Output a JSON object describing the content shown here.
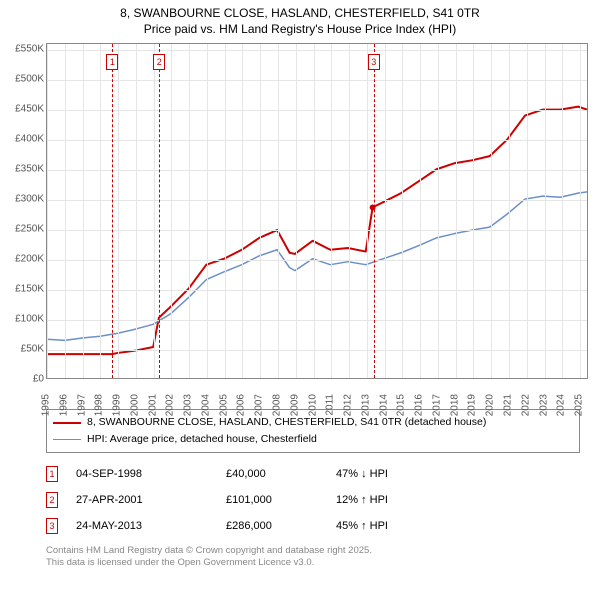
{
  "title": {
    "line1": "8, SWANBOURNE CLOSE, HASLAND, CHESTERFIELD, S41 0TR",
    "line2": "Price paid vs. HM Land Registry's House Price Index (HPI)"
  },
  "chart": {
    "type": "line",
    "background_color": "#ffffff",
    "grid_color": "#e5e5e5",
    "border_color": "#888888",
    "ylim": [
      0,
      560000
    ],
    "ytick_step": 50000,
    "yticks": [
      "£0",
      "£50K",
      "£100K",
      "£150K",
      "£200K",
      "£250K",
      "£300K",
      "£350K",
      "£400K",
      "£450K",
      "£500K",
      "£550K"
    ],
    "xlim": [
      1995,
      2025.5
    ],
    "xticks": [
      1995,
      1996,
      1997,
      1998,
      1999,
      2000,
      2001,
      2002,
      2003,
      2004,
      2005,
      2006,
      2007,
      2008,
      2009,
      2010,
      2011,
      2012,
      2013,
      2014,
      2015,
      2016,
      2017,
      2018,
      2019,
      2020,
      2021,
      2022,
      2023,
      2024,
      2025
    ],
    "series": [
      {
        "name": "price_paid",
        "color": "#cc0000",
        "line_width": 2,
        "points": [
          [
            1995,
            40000
          ],
          [
            1996,
            40000
          ],
          [
            1997,
            40000
          ],
          [
            1998,
            40000
          ],
          [
            1998.68,
            40000
          ],
          [
            1999,
            42000
          ],
          [
            2000,
            46000
          ],
          [
            2001,
            52000
          ],
          [
            2001.32,
            101000
          ],
          [
            2002,
            120000
          ],
          [
            2003,
            150000
          ],
          [
            2004,
            190000
          ],
          [
            2005,
            200000
          ],
          [
            2006,
            215000
          ],
          [
            2007,
            235000
          ],
          [
            2008,
            248000
          ],
          [
            2008.7,
            210000
          ],
          [
            2009,
            208000
          ],
          [
            2010,
            230000
          ],
          [
            2011,
            215000
          ],
          [
            2012,
            218000
          ],
          [
            2013,
            212000
          ],
          [
            2013.39,
            286000
          ],
          [
            2014,
            295000
          ],
          [
            2015,
            310000
          ],
          [
            2016,
            330000
          ],
          [
            2017,
            350000
          ],
          [
            2018,
            360000
          ],
          [
            2019,
            365000
          ],
          [
            2020,
            372000
          ],
          [
            2021,
            400000
          ],
          [
            2022,
            440000
          ],
          [
            2023,
            450000
          ],
          [
            2024,
            450000
          ],
          [
            2025,
            455000
          ],
          [
            2025.5,
            450000
          ]
        ]
      },
      {
        "name": "hpi",
        "color": "#6b8fc9",
        "line_width": 1.5,
        "points": [
          [
            1995,
            65000
          ],
          [
            1996,
            63000
          ],
          [
            1997,
            67000
          ],
          [
            1998,
            70000
          ],
          [
            1999,
            75000
          ],
          [
            2000,
            82000
          ],
          [
            2001,
            90000
          ],
          [
            2002,
            108000
          ],
          [
            2003,
            135000
          ],
          [
            2004,
            165000
          ],
          [
            2005,
            178000
          ],
          [
            2006,
            190000
          ],
          [
            2007,
            205000
          ],
          [
            2008,
            215000
          ],
          [
            2008.7,
            185000
          ],
          [
            2009,
            180000
          ],
          [
            2010,
            200000
          ],
          [
            2011,
            190000
          ],
          [
            2012,
            195000
          ],
          [
            2013,
            190000
          ],
          [
            2014,
            200000
          ],
          [
            2015,
            210000
          ],
          [
            2016,
            222000
          ],
          [
            2017,
            235000
          ],
          [
            2018,
            242000
          ],
          [
            2019,
            248000
          ],
          [
            2020,
            253000
          ],
          [
            2021,
            275000
          ],
          [
            2022,
            300000
          ],
          [
            2023,
            305000
          ],
          [
            2024,
            303000
          ],
          [
            2025,
            310000
          ],
          [
            2025.5,
            312000
          ]
        ]
      }
    ],
    "markers": [
      {
        "id": "1",
        "x": 1998.68,
        "y_label_top": 10
      },
      {
        "id": "2",
        "x": 2001.32,
        "y_label_top": 10
      },
      {
        "id": "3",
        "x": 2013.39,
        "y_label_top": 10
      }
    ]
  },
  "legend": {
    "items": [
      {
        "color": "#cc0000",
        "width": 2,
        "label": "8, SWANBOURNE CLOSE, HASLAND, CHESTERFIELD, S41 0TR (detached house)"
      },
      {
        "color": "#6b8fc9",
        "width": 1.5,
        "label": "HPI: Average price, detached house, Chesterfield"
      }
    ]
  },
  "sales": [
    {
      "id": "1",
      "date": "04-SEP-1998",
      "price": "£40,000",
      "delta": "47% ↓ HPI"
    },
    {
      "id": "2",
      "date": "27-APR-2001",
      "price": "£101,000",
      "delta": "12% ↑ HPI"
    },
    {
      "id": "3",
      "date": "24-MAY-2013",
      "price": "£286,000",
      "delta": "45% ↑ HPI"
    }
  ],
  "footer": {
    "line1": "Contains HM Land Registry data © Crown copyright and database right 2025.",
    "line2": "This data is licensed under the Open Government Licence v3.0."
  },
  "colors": {
    "marker_border": "#cc0000",
    "footer_text": "#888888",
    "tick_text": "#555555"
  },
  "fontsize": {
    "title": 12,
    "tick": 10,
    "legend": 10.5,
    "sales": 11,
    "footer": 9.5
  }
}
